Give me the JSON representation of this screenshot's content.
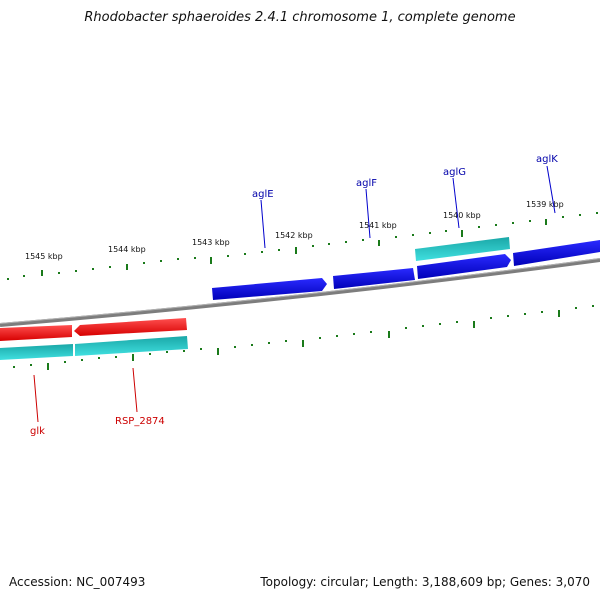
{
  "title": "Rhodobacter sphaeroides 2.4.1 chromosome 1, complete genome",
  "footer": {
    "accession": "Accession: NC_007493",
    "summary": "Topology: circular; Length: 3,188,609 bp; Genes: 3,070"
  },
  "ticks": [
    "1545 kbp",
    "1544 kbp",
    "1543 kbp",
    "1542 kbp",
    "1541 kbp",
    "1540 kbp",
    "1539 kbp"
  ],
  "genes_forward": [
    "aglE",
    "aglF",
    "aglG",
    "aglK"
  ],
  "genes_reverse": [
    "glk",
    "RSP_2874"
  ],
  "colors": {
    "forward_gene": "#0000dd",
    "reverse_gene": "#ee0000",
    "cds": "#20c8c8",
    "backbone": "#888888",
    "tick": "#1a7a1a",
    "forward_label": "#0000aa",
    "reverse_label": "#cc0000"
  }
}
